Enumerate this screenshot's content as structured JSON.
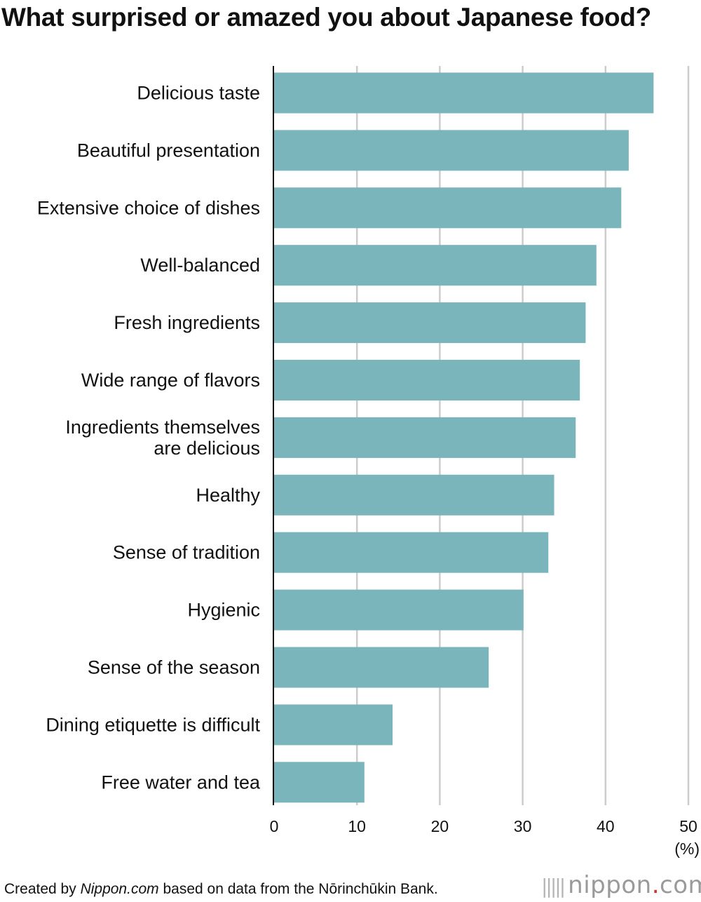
{
  "chart_data": {
    "type": "bar",
    "orientation": "horizontal",
    "title": "What surprised or amazed you about Japanese food?",
    "categories": [
      "Delicious taste",
      "Beautiful presentation",
      "Extensive choice of dishes",
      "Well-balanced",
      "Fresh ingredients",
      "Wide range of flavors",
      "Ingredients themselves are delicious",
      "Healthy",
      "Sense of tradition",
      "Hygienic",
      "Sense of the season",
      "Dining etiquette is difficult",
      "Free water and tea"
    ],
    "category_lines": [
      [
        "Delicious taste"
      ],
      [
        "Beautiful presentation"
      ],
      [
        "Extensive choice of dishes"
      ],
      [
        "Well-balanced"
      ],
      [
        "Fresh ingredients"
      ],
      [
        "Wide range of flavors"
      ],
      [
        "Ingredients themselves",
        "are delicious"
      ],
      [
        "Healthy"
      ],
      [
        "Sense of tradition"
      ],
      [
        "Hygienic"
      ],
      [
        "Sense of the season"
      ],
      [
        "Dining etiquette is difficult"
      ],
      [
        "Free water and tea"
      ]
    ],
    "values": [
      45.8,
      42.8,
      41.9,
      38.9,
      37.6,
      36.9,
      36.4,
      33.8,
      33.1,
      30.1,
      25.9,
      14.3,
      10.9
    ],
    "xlim": [
      0,
      50
    ],
    "xticks": [
      "0",
      "10",
      "20",
      "30",
      "40",
      "50"
    ],
    "unit": "(%)",
    "grid": true,
    "bar_color": "#7ab5bc"
  },
  "footer": {
    "prefix": "Created by ",
    "source_name": "Nippon.com",
    "suffix": " based on data from the Nōrinchūkin Bank."
  },
  "brand": {
    "name": "nippon",
    "dot": ".",
    "tld": "com"
  }
}
